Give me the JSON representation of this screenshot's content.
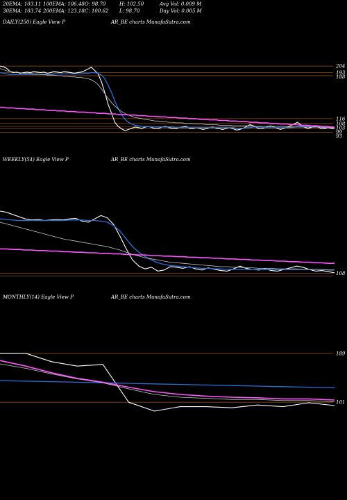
{
  "header": {
    "ema20": "20EMA: 103.11",
    "ema100": "100EMA: 106.48",
    "open": "O: 98.70",
    "high": "H: 102.50",
    "avgvol": "Avg Vol: 0.009 M",
    "ema30": "30EMA: 103.74",
    "ema200": "200EMA: 123.18",
    "close": "C: 100.62",
    "low": "L: 98.70",
    "dayvol": "Day Vol: 0.005 M"
  },
  "colors": {
    "price": "#ffffff",
    "ema_fast": "#2a6fdb",
    "ema_slow": "#ff55ff",
    "level": "#8a4a12",
    "ema_mid": "#c8c8c8"
  },
  "chart_data": [
    {
      "type": "line",
      "label_left": "DAILY(250) Eagle   View  P",
      "label_right": "AR_BE charts MunafaSutra.com",
      "y_tick_labels": [
        "204",
        "193",
        "188",
        "116",
        "108",
        "103",
        "99",
        "93"
      ],
      "series": [
        {
          "color": "price",
          "values": [
            204,
            203,
            200,
            195,
            193,
            194,
            192,
            193,
            194,
            193,
            195,
            194,
            193,
            194,
            192,
            193,
            195,
            194,
            193,
            195,
            194,
            193,
            192,
            193,
            194,
            196,
            199,
            202,
            197,
            191,
            178,
            160,
            140,
            125,
            110,
            103,
            99,
            96,
            98,
            100,
            102,
            101,
            100,
            102,
            103,
            101,
            99,
            100,
            102,
            103,
            101,
            100,
            99,
            101,
            102,
            103,
            100,
            99,
            101,
            100,
            98,
            99,
            101,
            102,
            100,
            99,
            98,
            100,
            101,
            99,
            97,
            98,
            100,
            103,
            106,
            104,
            101,
            99,
            100,
            102,
            104,
            102,
            100,
            98,
            100,
            102,
            104,
            107,
            110,
            106,
            102,
            100,
            101,
            103,
            102,
            100,
            99,
            101,
            100,
            99
          ]
        },
        {
          "color": "ema_fast",
          "values": [
            193,
            192,
            191,
            190,
            190,
            190,
            190,
            190,
            190,
            190,
            190,
            190,
            190,
            190,
            190,
            190,
            191,
            191,
            191,
            191,
            191,
            191,
            191,
            191,
            191,
            192,
            192,
            193,
            193,
            192,
            189,
            183,
            172,
            160,
            145,
            133,
            123,
            115,
            110,
            107,
            105,
            104,
            103,
            103,
            103,
            102,
            102,
            102,
            102,
            102,
            102,
            102,
            101,
            101,
            101,
            101,
            101,
            101,
            101,
            101,
            101,
            101,
            101,
            101,
            101,
            101,
            101,
            101,
            101,
            101,
            100,
            100,
            100,
            101,
            101,
            102,
            102,
            102,
            101,
            101,
            101,
            101,
            101,
            101,
            101,
            101,
            101,
            102,
            103,
            103,
            103,
            103,
            102,
            102,
            102,
            102,
            101,
            101,
            101,
            101
          ]
        },
        {
          "color": "ema_mid",
          "values": [
            200,
            198,
            196,
            195,
            194,
            193,
            193,
            192,
            192,
            192,
            191,
            191,
            190,
            190,
            189,
            189,
            189,
            188,
            188,
            187,
            187,
            186,
            186,
            185,
            185,
            184,
            183,
            181,
            178,
            173,
            166,
            158,
            150,
            143,
            137,
            132,
            128,
            125,
            122,
            120,
            118,
            117,
            116,
            115,
            114,
            113,
            112,
            112,
            111,
            111,
            110,
            110,
            109,
            109,
            109,
            108,
            108,
            108,
            107,
            107,
            107,
            106,
            106,
            106,
            106,
            105,
            105,
            105,
            105,
            104,
            104,
            104,
            104,
            104,
            104,
            104,
            103,
            103,
            103,
            103,
            103,
            103,
            103,
            103,
            103,
            102,
            102,
            102,
            102,
            102,
            102,
            102,
            102,
            102,
            102,
            102,
            101,
            101,
            101,
            101
          ]
        },
        {
          "color": "ema_slow",
          "values": [
            135,
            135,
            134,
            134,
            134,
            133,
            133,
            133,
            132,
            132,
            132,
            131,
            131,
            131,
            130,
            130,
            130,
            129,
            129,
            129,
            128,
            128,
            128,
            127,
            127,
            127,
            126,
            126,
            126,
            125,
            125,
            125,
            124,
            124,
            124,
            123,
            123,
            123,
            122,
            122,
            122,
            121,
            121,
            121,
            120,
            120,
            120,
            119,
            119,
            119,
            118,
            118,
            118,
            117,
            117,
            117,
            116,
            116,
            116,
            115,
            115,
            115,
            114,
            114,
            114,
            113,
            113,
            113,
            112,
            112,
            112,
            111,
            111,
            111,
            110,
            110,
            110,
            109,
            109,
            109,
            108,
            108,
            108,
            107,
            107,
            107,
            106,
            106,
            106,
            105,
            105,
            105,
            104,
            104,
            104,
            103,
            103,
            103,
            102,
            102
          ]
        }
      ],
      "levels": [
        204,
        193,
        188,
        116,
        108,
        103,
        99,
        93
      ]
    },
    {
      "type": "line",
      "label_left": "WEEKLY(54) Eagle   View  P",
      "label_right": "AR_BE charts MunafaSutra.com",
      "y_tick_labels": [
        "108"
      ],
      "series": [
        {
          "color": "price",
          "values": [
            220,
            218,
            214,
            210,
            206,
            204,
            205,
            203,
            204,
            205,
            204,
            206,
            207,
            202,
            200,
            206,
            212,
            208,
            196,
            175,
            152,
            132,
            121,
            116,
            119,
            112,
            114,
            120,
            119,
            117,
            120,
            116,
            114,
            118,
            115,
            113,
            112,
            116,
            121,
            117,
            115,
            114,
            116,
            113,
            112,
            115,
            118,
            121,
            119,
            115,
            112,
            113,
            111,
            109
          ]
        },
        {
          "color": "ema_fast",
          "values": [
            206,
            205,
            204,
            203,
            203,
            203,
            203,
            203,
            203,
            203,
            203,
            204,
            204,
            204,
            203,
            203,
            202,
            200,
            194,
            184,
            170,
            156,
            146,
            138,
            132,
            127,
            124,
            122,
            121,
            120,
            119,
            118,
            117,
            117,
            116,
            116,
            115,
            115,
            115,
            115,
            115,
            115,
            115,
            115,
            115,
            115,
            115,
            115,
            115,
            115,
            115,
            115,
            114,
            114
          ]
        },
        {
          "color": "ema_mid",
          "values": [
            200,
            197,
            194,
            191,
            188,
            185,
            182,
            179,
            176,
            173,
            170,
            168,
            166,
            164,
            162,
            160,
            158,
            156,
            153,
            150,
            146,
            142,
            139,
            136,
            134,
            132,
            130,
            128,
            127,
            126,
            125,
            124,
            123,
            122,
            121,
            120,
            120,
            119,
            119,
            118,
            118,
            117,
            117,
            117,
            116,
            116,
            116,
            116,
            115,
            115,
            115,
            115,
            114,
            114
          ]
        },
        {
          "color": "ema_slow",
          "values": [
            152,
            152,
            151,
            151,
            150,
            150,
            149,
            149,
            148,
            148,
            147,
            147,
            146,
            146,
            145,
            145,
            144,
            144,
            143,
            143,
            142,
            142,
            141,
            141,
            140,
            140,
            139,
            139,
            138,
            138,
            137,
            137,
            136,
            136,
            135,
            135,
            134,
            134,
            133,
            133,
            132,
            132,
            131,
            131,
            130,
            130,
            129,
            129,
            128,
            128,
            127,
            127,
            126,
            126
          ]
        }
      ],
      "levels": [
        108,
        103
      ]
    },
    {
      "type": "line",
      "label_left": "MONTHLY(14) Eagle   View  P",
      "label_right": "AR_BE charts MunafaSutra.com",
      "y_tick_labels": [
        "189",
        "101"
      ],
      "series": [
        {
          "color": "price",
          "values": [
            189,
            189,
            174,
            166,
            169,
            101,
            85,
            93,
            93,
            91,
            96,
            93,
            100,
            95
          ]
        },
        {
          "color": "ema_fast",
          "values": [
            140,
            139,
            138,
            137,
            136,
            135,
            134,
            133,
            132,
            131,
            130,
            129,
            128,
            127
          ]
        },
        {
          "color": "ema_mid",
          "values": [
            170,
            162,
            152,
            143,
            136,
            125,
            115,
            110,
            108,
            106,
            106,
            104,
            104,
            102
          ]
        },
        {
          "color": "ema_slow",
          "values": [
            176,
            166,
            154,
            144,
            137,
            128,
            120,
            115,
            112,
            110,
            109,
            107,
            107,
            105
          ]
        }
      ],
      "levels": [
        189,
        101
      ]
    }
  ]
}
